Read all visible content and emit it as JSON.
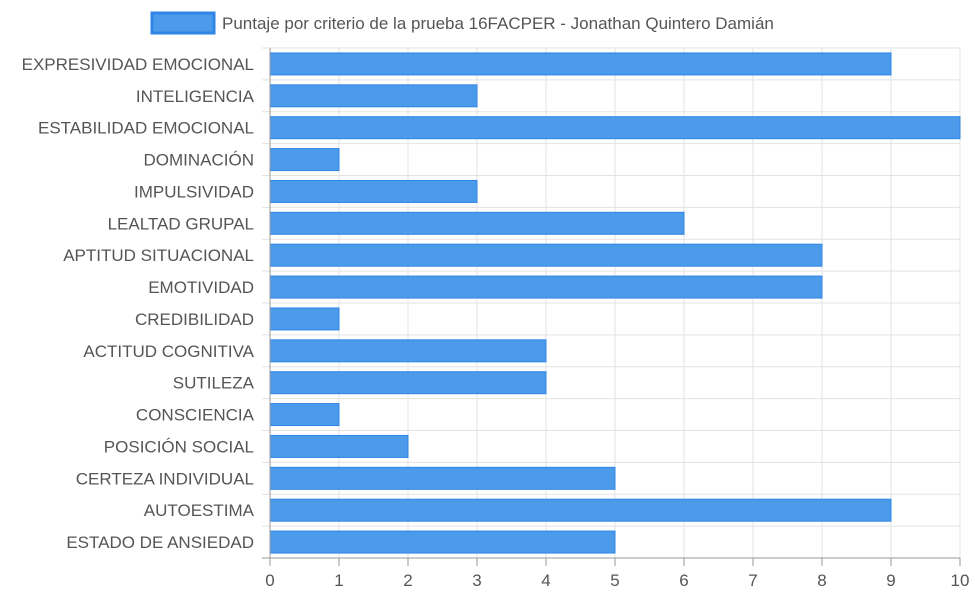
{
  "chart_data": {
    "type": "bar",
    "orientation": "horizontal",
    "series": [
      {
        "name": "Puntaje por criterio de la prueba 16FACPER - Jonathan Quintero Damián",
        "color": "#4c9aea",
        "values": [
          9,
          3,
          10,
          1,
          3,
          6,
          8,
          8,
          1,
          4,
          4,
          1,
          2,
          5,
          9,
          5
        ]
      }
    ],
    "categories": [
      "EXPRESIVIDAD EMOCIONAL",
      "INTELIGENCIA",
      "ESTABILIDAD EMOCIONAL",
      "DOMINACIÓN",
      "IMPULSIVIDAD",
      "LEALTAD GRUPAL",
      "APTITUD SITUACIONAL",
      "EMOTIVIDAD",
      "CREDIBILIDAD",
      "ACTITUD COGNITIVA",
      "SUTILEZA",
      "CONSCIENCIA",
      "POSICIÓN SOCIAL",
      "CERTEZA INDIVIDUAL",
      "AUTOESTIMA",
      "ESTADO DE ANSIEDAD"
    ],
    "x_ticks": [
      "0",
      "1",
      "2",
      "3",
      "4",
      "5",
      "6",
      "7",
      "8",
      "9",
      "10"
    ],
    "xlim": [
      0,
      10
    ],
    "grid": true,
    "legend_position": "top"
  },
  "colors": {
    "bar_fill": "#4c9aea",
    "bar_border": "#2f86e6",
    "grid": "#e3e3e3",
    "axis": "#999999",
    "label_text": "#555555"
  }
}
